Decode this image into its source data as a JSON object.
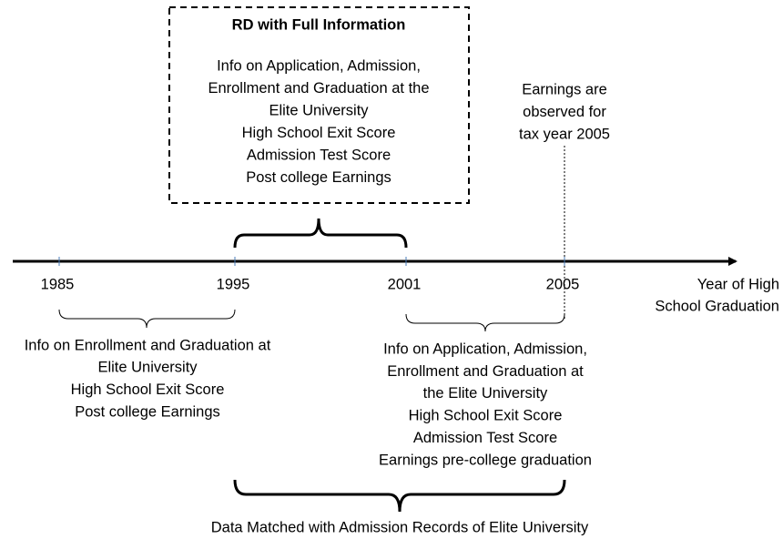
{
  "box": {
    "title": "RD with Full Information",
    "lines": [
      "Info on Application, Admission,",
      "Enrollment and Graduation at the",
      "Elite University",
      "High School Exit Score",
      "Admission Test Score",
      "Post college Earnings"
    ]
  },
  "annotation": {
    "lines": [
      "Earnings are",
      "observed for",
      "tax year 2005"
    ]
  },
  "timeline": {
    "ticks": [
      "1985",
      "1995",
      "2001",
      "2005"
    ],
    "axis_label": [
      "Year of High",
      "School Graduation"
    ]
  },
  "left_block": {
    "lines": [
      "Info on Enrollment and Graduation at",
      "Elite University",
      "High School Exit Score",
      "Post college Earnings"
    ]
  },
  "right_block": {
    "lines": [
      "Info on Application, Admission,",
      "Enrollment and Graduation at",
      "the Elite University",
      "High School Exit Score",
      "Admission Test Score",
      "Earnings pre-college graduation"
    ]
  },
  "bottom_label": "Data Matched with Admission Records of Elite University"
}
